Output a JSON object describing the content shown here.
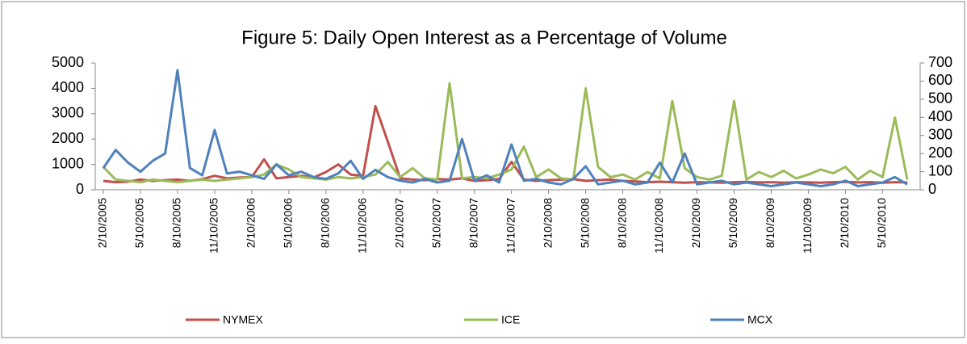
{
  "chart_data": {
    "type": "line",
    "title": "Figure 5: Daily Open Interest as a Percentage of Volume",
    "categories": [
      "2/10/2005",
      null,
      null,
      "5/10/2005",
      null,
      null,
      "8/10/2005",
      null,
      null,
      "11/10/2005",
      null,
      null,
      "2/10/2006",
      null,
      null,
      "5/10/2006",
      null,
      null,
      "8/10/2006",
      null,
      null,
      "11/10/2006",
      null,
      null,
      "2/10/2007",
      null,
      null,
      "5/10/2007",
      null,
      null,
      "8/10/2007",
      null,
      null,
      "11/10/2007",
      null,
      null,
      "2/10/2008",
      null,
      null,
      "5/10/2008",
      null,
      null,
      "8/10/2008",
      null,
      null,
      "11/10/2008",
      null,
      null,
      "2/10/2009",
      null,
      null,
      "5/10/2009",
      null,
      null,
      "8/10/2009",
      null,
      null,
      "11/10/2009",
      null,
      null,
      "2/10/2010",
      null,
      null,
      "5/10/2010",
      null,
      null
    ],
    "ylim": [
      0,
      5000
    ],
    "yticks": [
      0,
      1000,
      2000,
      3000,
      4000,
      5000
    ],
    "y2lim": [
      0,
      700
    ],
    "y2ticks": [
      0,
      100,
      200,
      300,
      400,
      500,
      600,
      700
    ],
    "legend": "bottom",
    "grid": false,
    "series": [
      {
        "name": "NYMEX",
        "color": "#c0504d",
        "values": [
          350,
          300,
          320,
          400,
          350,
          380,
          400,
          350,
          420,
          550,
          450,
          480,
          500,
          1200,
          450,
          500,
          550,
          480,
          700,
          1000,
          600,
          550,
          3300,
          1900,
          450,
          400,
          380,
          420,
          400,
          450,
          350,
          380,
          420,
          1100,
          400,
          350,
          380,
          400,
          420,
          350,
          380,
          400,
          350,
          330,
          300,
          320,
          300,
          280,
          300,
          290,
          280,
          300,
          310,
          290,
          300,
          280,
          300,
          290,
          280,
          300,
          310,
          290,
          300,
          280,
          300,
          290
        ]
      },
      {
        "name": "ICE",
        "color": "#9bbb59",
        "values": [
          900,
          400,
          350,
          300,
          400,
          350,
          300,
          350,
          400,
          350,
          400,
          450,
          500,
          600,
          1000,
          800,
          500,
          450,
          400,
          500,
          450,
          500,
          600,
          1100,
          500,
          850,
          450,
          400,
          4200,
          450,
          500,
          450,
          600,
          800,
          1700,
          500,
          800,
          450,
          400,
          4000,
          900,
          500,
          600,
          400,
          700,
          450,
          3500,
          850,
          500,
          400,
          550,
          3500,
          400,
          700,
          500,
          750,
          450,
          600,
          800,
          650,
          900,
          400,
          750,
          500,
          2850,
          400
        ]
      },
      {
        "name": "MCX",
        "color": "#4f81bd",
        "axis": "y2",
        "values": [
          120,
          220,
          150,
          100,
          160,
          200,
          660,
          120,
          80,
          330,
          90,
          100,
          80,
          60,
          140,
          80,
          100,
          70,
          60,
          90,
          160,
          60,
          110,
          70,
          50,
          40,
          60,
          40,
          50,
          280,
          50,
          80,
          40,
          250,
          50,
          60,
          40,
          30,
          60,
          130,
          30,
          40,
          50,
          30,
          40,
          150,
          40,
          200,
          30,
          40,
          50,
          30,
          40,
          30,
          20,
          30,
          40,
          30,
          20,
          30,
          50,
          20,
          30,
          40,
          70,
          30
        ]
      }
    ]
  }
}
